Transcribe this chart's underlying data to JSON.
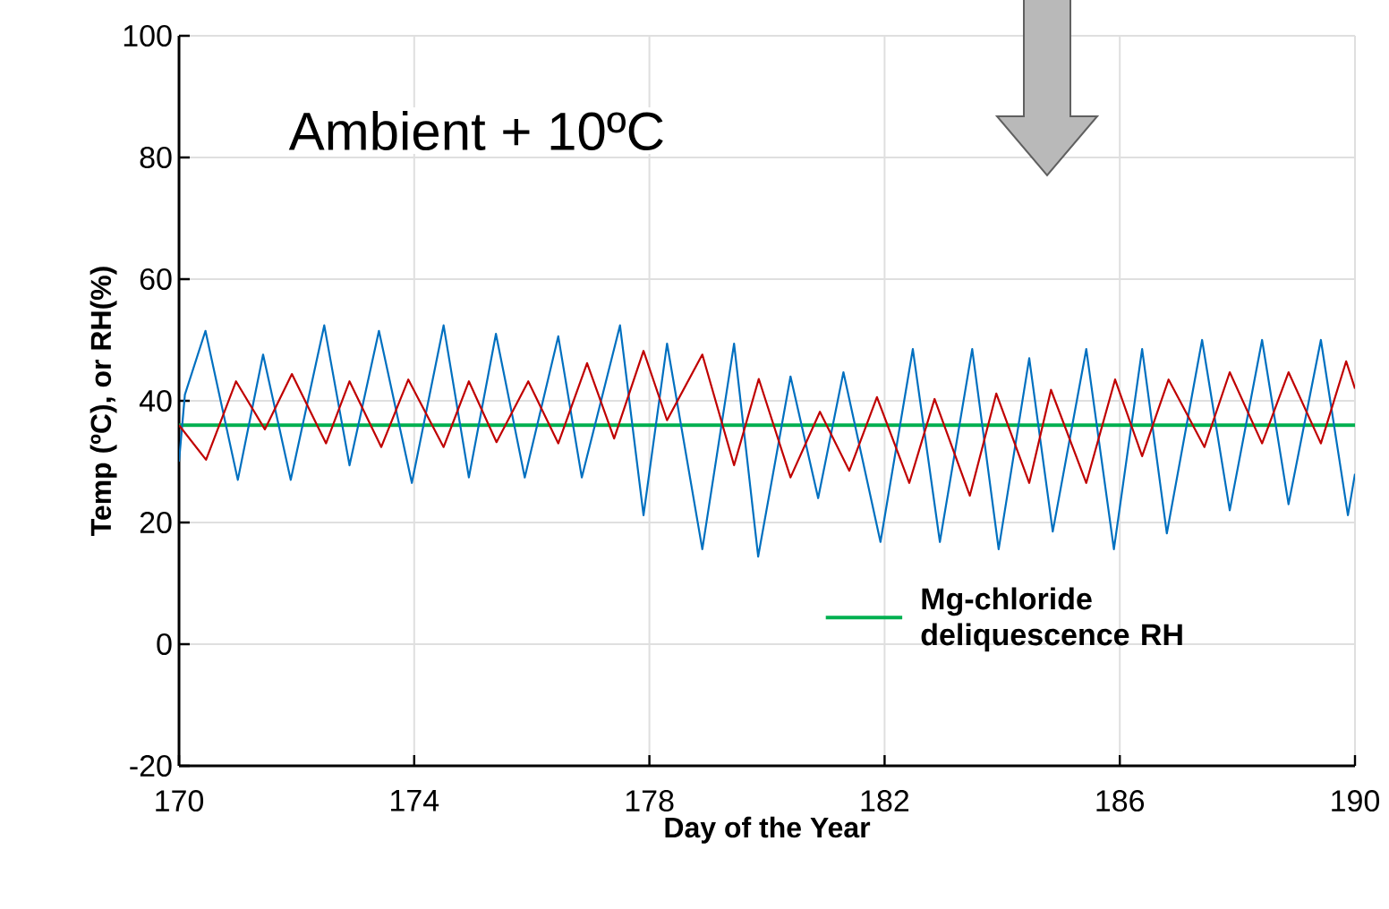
{
  "chart_data": {
    "type": "line",
    "xlabel": "Day of the Year",
    "ylabel": "Temp (ºC), or RH(%)",
    "annotations": [
      "Ambient + 10ºC"
    ],
    "xlim": [
      170,
      190
    ],
    "xticks": [
      170,
      174,
      178,
      182,
      186,
      190
    ],
    "ylim": [
      -20,
      100
    ],
    "yticks": [
      -20,
      0,
      20,
      40,
      60,
      80,
      100
    ],
    "grid": true,
    "legend": "bottom right",
    "series": [
      {
        "color": "#0070c0",
        "x": [
          170,
          170.1,
          170.45,
          171.0,
          171.43,
          171.9,
          172.47,
          172.9,
          173.4,
          173.96,
          174.5,
          174.93,
          175.39,
          175.88,
          176.45,
          176.85,
          177.5,
          177.9,
          178.3,
          178.9,
          179.44,
          179.85,
          180.4,
          180.87,
          181.3,
          181.93,
          182.48,
          182.94,
          183.49,
          183.94,
          184.46,
          184.86,
          185.43,
          185.9,
          186.38,
          186.8,
          187.4,
          187.87,
          188.42,
          188.87,
          189.42,
          189.88,
          190
        ],
        "values": [
          30,
          41,
          51.5,
          27,
          47.6,
          27,
          52.4,
          29.4,
          51.5,
          26.5,
          52.4,
          27.4,
          51,
          27.4,
          50.6,
          27.4,
          52.4,
          21.2,
          49.4,
          15.6,
          49.4,
          14.4,
          44,
          24,
          44.7,
          16.8,
          48.5,
          16.8,
          48.5,
          15.6,
          47,
          18.5,
          48.5,
          15.6,
          48.5,
          18.2,
          50,
          22,
          50,
          23,
          50,
          21.2,
          28
        ]
      },
      {
        "color": "#c00000",
        "x": [
          170,
          170.46,
          170.97,
          171.46,
          171.92,
          172.5,
          172.9,
          173.44,
          173.9,
          174.5,
          174.93,
          175.4,
          175.94,
          176.45,
          176.94,
          177.4,
          177.9,
          178.3,
          178.9,
          179.44,
          179.86,
          180.4,
          180.9,
          181.4,
          181.87,
          182.42,
          182.85,
          183.45,
          183.9,
          184.46,
          184.83,
          185.43,
          185.92,
          186.38,
          186.83,
          187.44,
          187.87,
          188.42,
          188.87,
          189.42,
          189.85,
          190
        ],
        "values": [
          36,
          30.3,
          43.2,
          35.3,
          44.4,
          33,
          43.2,
          32.4,
          43.5,
          32.4,
          43.2,
          33.2,
          43.2,
          33,
          46.2,
          33.8,
          48.2,
          36.8,
          47.6,
          29.4,
          43.6,
          27.4,
          38.2,
          28.5,
          40.6,
          26.5,
          40.3,
          24.4,
          41.2,
          26.5,
          41.8,
          26.5,
          43.5,
          30.9,
          43.5,
          32.4,
          44.7,
          33,
          44.7,
          33,
          46.5,
          42
        ]
      }
    ],
    "ref_lines": [
      {
        "axis": "y",
        "value": 36,
        "label": "Mg-chloride deliquescence RH",
        "color": "#00b050"
      }
    ]
  }
}
